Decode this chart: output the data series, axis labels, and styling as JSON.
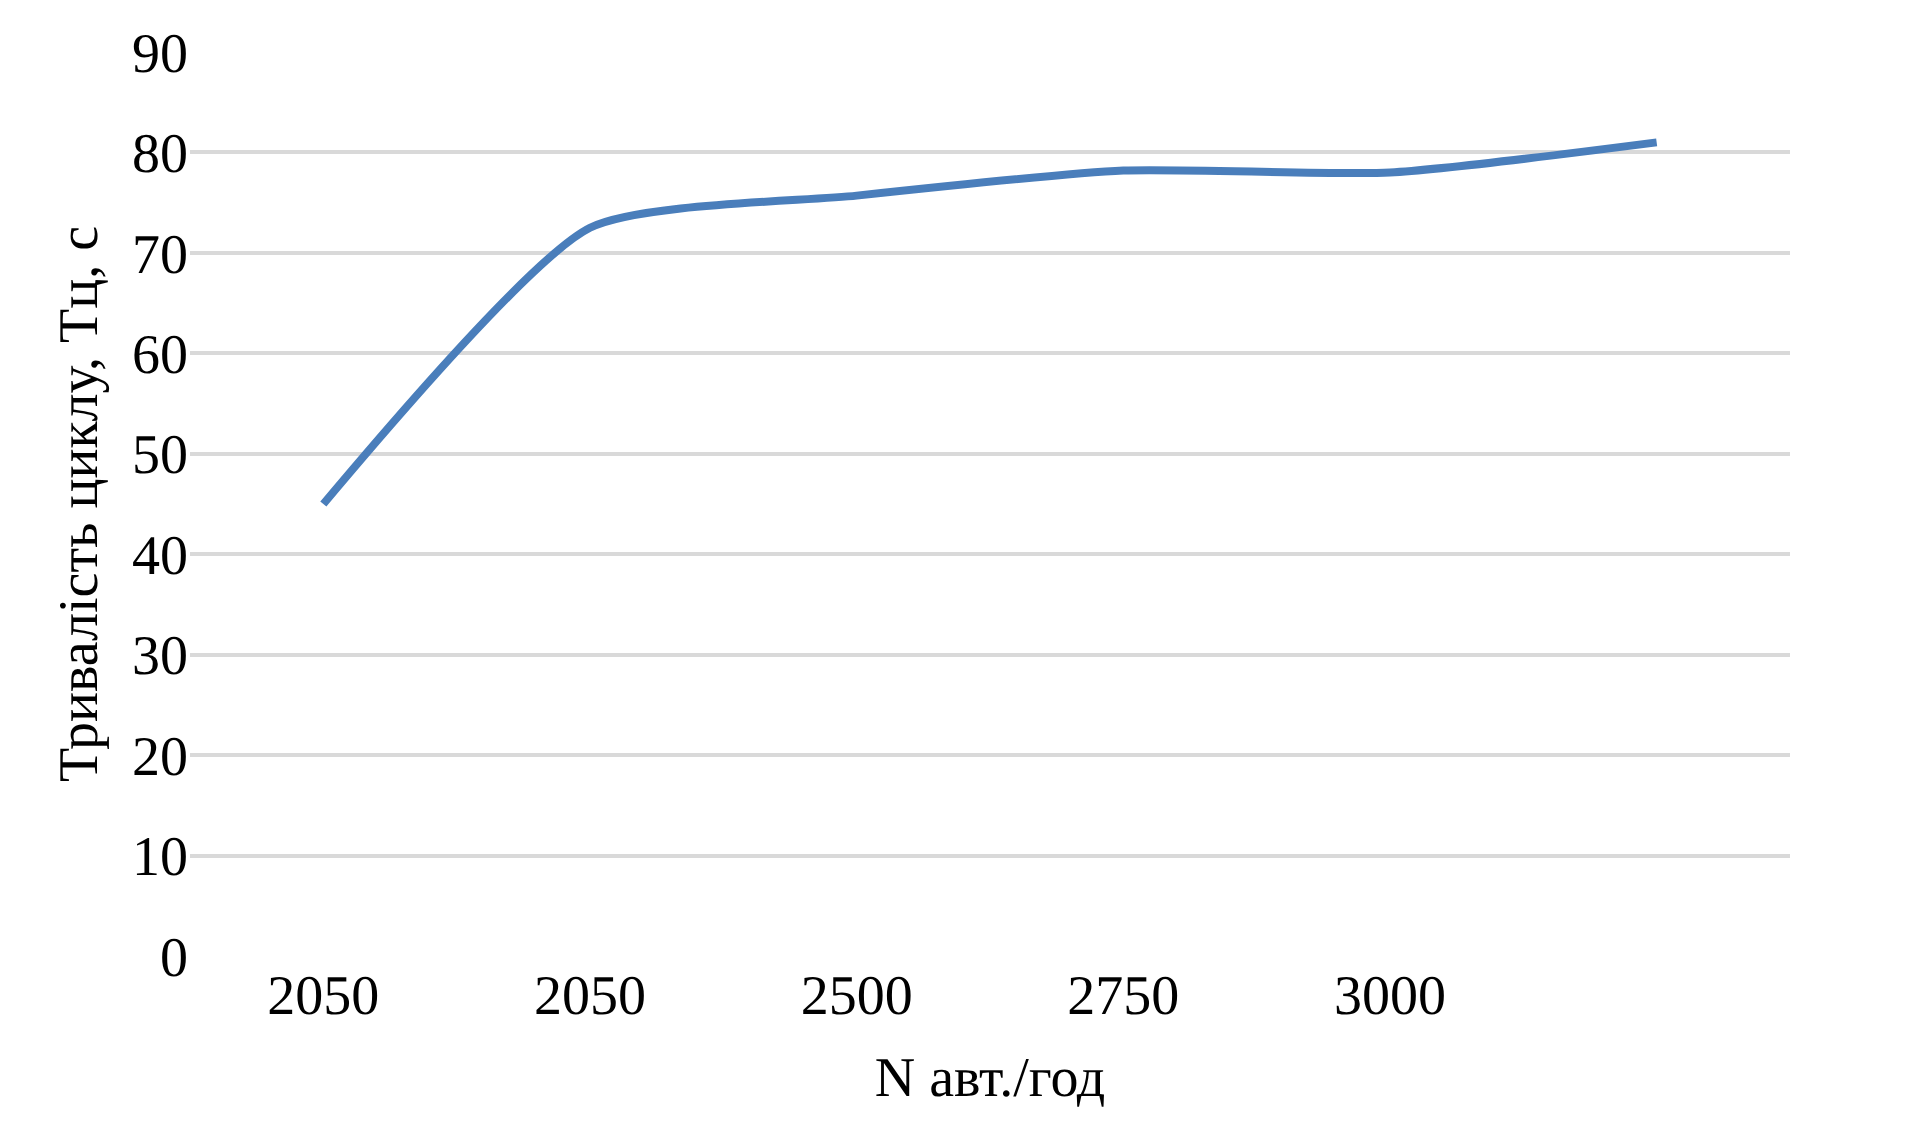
{
  "chart_data": {
    "type": "line",
    "xlabel": "N авт./год",
    "ylabel": "Тривалість циклу, Тц, с",
    "categories": [
      "2050",
      "2050",
      "2500",
      "2750",
      "3000",
      null
    ],
    "series": [
      {
        "color": "#4a7ebb",
        "values": [
          45,
          72.5,
          75.7,
          78.2,
          78,
          81
        ]
      }
    ],
    "ylim": [
      0,
      90
    ],
    "yticks": [
      0,
      10,
      20,
      30,
      40,
      50,
      60,
      70,
      80,
      90
    ],
    "grid": "y",
    "marker": "none",
    "line_style": "solid"
  }
}
